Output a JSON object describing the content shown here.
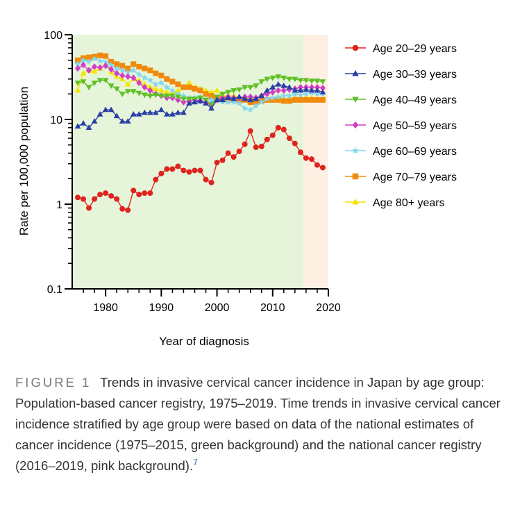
{
  "chart_data": {
    "type": "line",
    "xlabel": "Year of diagnosis",
    "ylabel": "Rate per 100,000 population",
    "y_scale": "log",
    "ylim": [
      0.1,
      100
    ],
    "xlim": [
      1974,
      2020
    ],
    "x_ticks": [
      "1980",
      "1990",
      "2000",
      "2010",
      "2020"
    ],
    "y_ticks": [
      "0.1",
      "1",
      "10",
      "100"
    ],
    "legend_position": "right",
    "background_regions": [
      {
        "from": 1974,
        "to": 2015.5,
        "color": "#e6f5d9"
      },
      {
        "from": 2015.5,
        "to": 2020,
        "color": "#fdf0e3"
      }
    ],
    "x": [
      1975,
      1976,
      1977,
      1978,
      1979,
      1980,
      1981,
      1982,
      1983,
      1984,
      1985,
      1986,
      1987,
      1988,
      1989,
      1990,
      1991,
      1992,
      1993,
      1994,
      1995,
      1996,
      1997,
      1998,
      1999,
      2000,
      2001,
      2002,
      2003,
      2004,
      2005,
      2006,
      2007,
      2008,
      2009,
      2010,
      2011,
      2012,
      2013,
      2014,
      2015,
      2016,
      2017,
      2018,
      2019
    ],
    "series": [
      {
        "name": "Age 20–29 years",
        "color": "#e0231f",
        "marker": "circle",
        "values": [
          1.2,
          1.15,
          0.9,
          1.15,
          1.3,
          1.35,
          1.25,
          1.15,
          0.88,
          0.85,
          1.45,
          1.3,
          1.35,
          1.35,
          1.95,
          2.3,
          2.6,
          2.6,
          2.8,
          2.5,
          2.4,
          2.5,
          2.5,
          1.95,
          1.8,
          3.1,
          3.3,
          4.0,
          3.6,
          4.2,
          5.1,
          7.3,
          4.7,
          4.8,
          5.8,
          6.5,
          8.0,
          7.6,
          6.0,
          5.2,
          4.1,
          3.5,
          3.4,
          2.9,
          2.7
        ]
      },
      {
        "name": "Age 30–39 years",
        "color": "#2a3ea8",
        "marker": "triangle-up",
        "values": [
          8.3,
          9.0,
          8.0,
          9.5,
          11.5,
          13.0,
          13.0,
          11.0,
          9.5,
          9.5,
          11.5,
          11.5,
          12.0,
          12.0,
          12.0,
          13.0,
          11.5,
          11.5,
          12.0,
          12.0,
          15.5,
          16.0,
          16.5,
          15.5,
          13.5,
          17.0,
          17.0,
          18.0,
          17.5,
          18.5,
          17.5,
          17.0,
          17.5,
          19.0,
          22.0,
          24.0,
          26.0,
          25.0,
          24.0,
          22.0,
          22.0,
          22.5,
          22.0,
          22.0,
          21.0
        ]
      },
      {
        "name": "Age 40–49 years",
        "color": "#5fbf25",
        "marker": "triangle-down",
        "values": [
          27.0,
          28.0,
          24.0,
          27.0,
          29.0,
          29.0,
          25.0,
          23.0,
          20.0,
          21.5,
          21.5,
          20.5,
          19.5,
          19.0,
          19.5,
          19.0,
          19.0,
          19.0,
          18.5,
          17.5,
          17.5,
          17.5,
          18.0,
          17.0,
          15.0,
          18.5,
          20.0,
          21.0,
          22.0,
          22.5,
          24.0,
          24.0,
          25.0,
          28.0,
          30.0,
          31.0,
          32.0,
          31.0,
          30.0,
          30.0,
          29.0,
          29.0,
          28.5,
          28.5,
          28.0
        ]
      },
      {
        "name": "Age 50–59 years",
        "color": "#d23fc6",
        "marker": "diamond",
        "values": [
          40.0,
          44.0,
          38.0,
          42.0,
          41.0,
          43.0,
          39.0,
          35.0,
          33.0,
          32.0,
          31.0,
          27.0,
          24.0,
          22.0,
          20.0,
          19.0,
          18.0,
          18.0,
          17.0,
          16.0,
          16.5,
          17.0,
          16.5,
          16.0,
          15.0,
          17.0,
          18.0,
          18.5,
          18.0,
          18.0,
          18.5,
          18.5,
          18.0,
          19.0,
          20.0,
          21.0,
          22.0,
          22.0,
          22.5,
          23.0,
          24.0,
          24.0,
          24.0,
          24.0,
          23.5
        ]
      },
      {
        "name": "Age 60–69 years",
        "color": "#86d6ee",
        "marker": "star",
        "values": [
          45.0,
          50.0,
          48.0,
          52.0,
          49.0,
          48.0,
          44.0,
          40.0,
          38.0,
          36.0,
          38.0,
          34.0,
          31.0,
          29.0,
          26.0,
          27.0,
          24.0,
          22.0,
          20.0,
          19.0,
          18.0,
          18.0,
          18.5,
          17.0,
          17.0,
          16.5,
          16.0,
          16.0,
          16.0,
          15.5,
          13.5,
          13.0,
          14.5,
          16.0,
          17.5,
          18.0,
          18.5,
          19.0,
          19.0,
          20.0,
          19.5,
          20.0,
          20.5,
          20.0,
          20.0
        ]
      },
      {
        "name": "Age 70–79 years",
        "color": "#f08a0c",
        "marker": "square",
        "values": [
          50.0,
          53.0,
          54.0,
          55.0,
          57.0,
          56.0,
          48.0,
          45.0,
          43.0,
          40.0,
          45.0,
          42.0,
          40.0,
          38.0,
          35.0,
          33.0,
          30.0,
          28.0,
          26.0,
          24.0,
          24.0,
          23.0,
          22.0,
          20.0,
          19.0,
          18.0,
          17.5,
          17.0,
          17.0,
          16.5,
          17.0,
          16.0,
          16.0,
          16.5,
          17.0,
          17.0,
          17.0,
          16.5,
          16.5,
          17.0,
          17.0,
          17.0,
          17.0,
          17.0,
          17.0
        ]
      },
      {
        "name": "Age 80+ years",
        "color": "#f2e600",
        "marker": "triangle-up",
        "values": [
          22.0,
          35.0,
          38.0,
          37.0,
          40.0,
          45.0,
          36.0,
          32.0,
          30.0,
          26.0,
          30.0,
          29.0,
          26.0,
          24.0,
          23.0,
          22.0,
          21.0,
          21.0,
          22.0,
          24.0,
          27.0,
          24.0,
          23.0,
          22.0,
          21.0,
          22.0,
          19.0,
          19.0,
          19.0,
          18.5,
          18.0,
          18.0,
          17.5,
          17.0,
          17.0,
          17.5,
          17.0,
          17.5,
          17.5,
          18.0,
          18.0,
          18.0,
          18.0,
          17.5,
          17.5
        ]
      }
    ]
  },
  "caption": {
    "label": "FIGURE 1",
    "text": "Trends in invasive cervical cancer incidence in Japan by age group: Population-based cancer registry, 1975–2019. Time trends in invasive cervical cancer incidence stratified by age group were based on data of the national estimates of cancer incidence (1975–2015, green background) and the national cancer registry (2016–2019, pink background).",
    "ref": "7"
  }
}
